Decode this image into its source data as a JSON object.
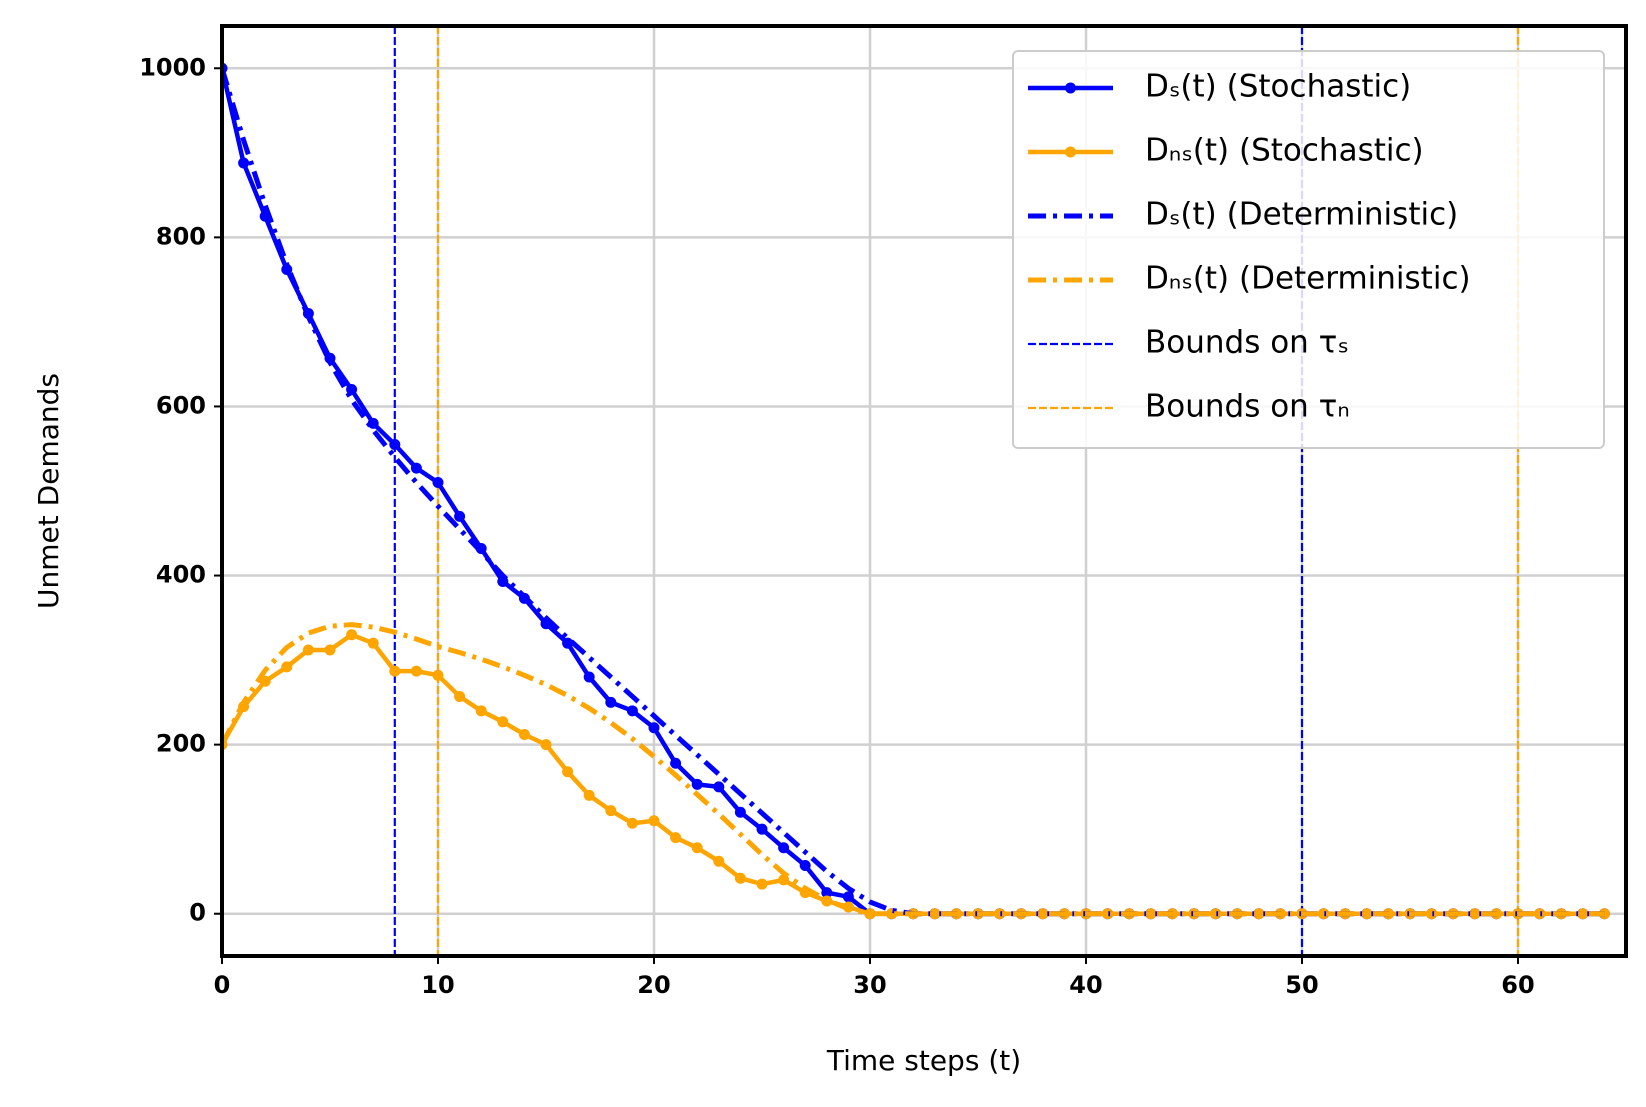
{
  "chart_data": {
    "type": "line",
    "xlabel": "Time steps (t)",
    "ylabel": "Unmet Demands",
    "x": [
      0,
      1,
      2,
      3,
      4,
      5,
      6,
      7,
      8,
      9,
      10,
      11,
      12,
      13,
      14,
      15,
      16,
      17,
      18,
      19,
      20,
      21,
      22,
      23,
      24,
      25,
      26,
      27,
      28,
      29,
      30,
      31,
      32,
      33,
      34,
      35,
      36,
      37,
      38,
      39,
      40,
      41,
      42,
      43,
      44,
      45,
      46,
      47,
      48,
      49,
      50,
      51,
      52,
      53,
      54,
      55,
      56,
      57,
      58,
      59,
      60,
      61,
      62,
      63,
      64
    ],
    "series": [
      {
        "name": "Dₛ(t) (Stochastic)",
        "color": "#0000ff",
        "style": "solid-marker",
        "values": [
          1000,
          888,
          825,
          762,
          710,
          657,
          620,
          580,
          555,
          527,
          510,
          470,
          432,
          393,
          373,
          343,
          320,
          280,
          250,
          240,
          220,
          178,
          153,
          150,
          120,
          100,
          78,
          57,
          25,
          20,
          0,
          0,
          0,
          0,
          0,
          0,
          0,
          0,
          0,
          0,
          0,
          0,
          0,
          0,
          0,
          0,
          0,
          0,
          0,
          0,
          0,
          0,
          0,
          0,
          0,
          0,
          0,
          0,
          0,
          0,
          0,
          0,
          0,
          0,
          0
        ]
      },
      {
        "name": "Dₙₛ(t) (Stochastic)",
        "color": "#ffa500",
        "style": "solid-marker",
        "values": [
          200,
          245,
          275,
          292,
          312,
          312,
          330,
          320,
          287,
          287,
          282,
          257,
          240,
          227,
          212,
          200,
          168,
          140,
          122,
          107,
          110,
          90,
          78,
          62,
          42,
          35,
          40,
          25,
          15,
          8,
          0,
          0,
          0,
          0,
          0,
          0,
          0,
          0,
          0,
          0,
          0,
          0,
          0,
          0,
          0,
          0,
          0,
          0,
          0,
          0,
          0,
          0,
          0,
          0,
          0,
          0,
          0,
          0,
          0,
          0,
          0,
          0,
          0,
          0,
          0
        ]
      },
      {
        "name": "Dₛ(t) (Deterministic)",
        "color": "#0000ff",
        "style": "dashdot",
        "values": [
          1000,
          915,
          838,
          768,
          706,
          652,
          608,
          572,
          540,
          510,
          482,
          455,
          428,
          400,
          375,
          350,
          326,
          303,
          280,
          257,
          234,
          211,
          188,
          165,
          142,
          119,
          96,
          73,
          50,
          30,
          14,
          4,
          0,
          0,
          0,
          0,
          0,
          0,
          0,
          0,
          0,
          0,
          0,
          0,
          0,
          0,
          0,
          0,
          0,
          0,
          0,
          0,
          0,
          0,
          0,
          0,
          0,
          0,
          0,
          0,
          0,
          0,
          0,
          0,
          0
        ]
      },
      {
        "name": "Dₙₛ(t) (Deterministic)",
        "color": "#ffa500",
        "style": "dashdot",
        "values": [
          200,
          250,
          288,
          315,
          332,
          340,
          342,
          339,
          333,
          325,
          316,
          309,
          301,
          292,
          282,
          271,
          258,
          243,
          226,
          207,
          186,
          164,
          141,
          118,
          94,
          70,
          48,
          30,
          16,
          6,
          0,
          0,
          0,
          0,
          0,
          0,
          0,
          0,
          0,
          0,
          0,
          0,
          0,
          0,
          0,
          0,
          0,
          0,
          0,
          0,
          0,
          0,
          0,
          0,
          0,
          0,
          0,
          0,
          0,
          0,
          0,
          0,
          0,
          0,
          0
        ]
      }
    ],
    "vlines": [
      {
        "name": "Bounds on τₛ",
        "color": "#0000ff",
        "values": [
          8,
          50
        ]
      },
      {
        "name": "Bounds on τₙ",
        "color": "#ffa500",
        "values": [
          10,
          60
        ]
      }
    ],
    "xlim": [
      0,
      65
    ],
    "ylim": [
      -50,
      1050
    ],
    "xticks": [
      0,
      10,
      20,
      30,
      40,
      50,
      60
    ],
    "yticks": [
      0,
      200,
      400,
      600,
      800,
      1000
    ],
    "grid": true,
    "legend": "upper right"
  }
}
